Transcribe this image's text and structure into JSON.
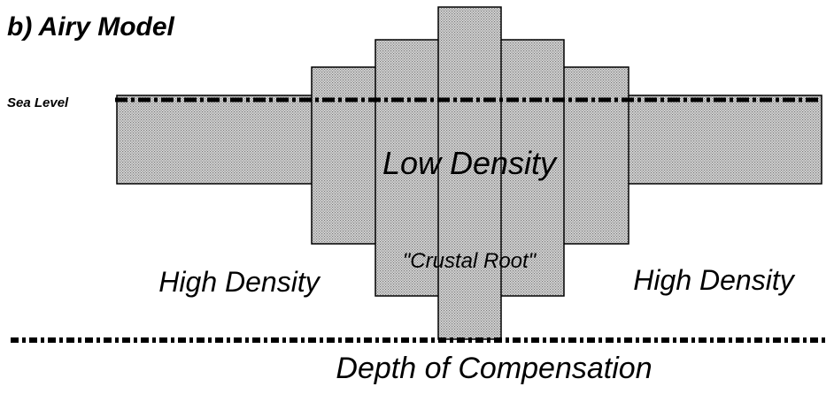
{
  "title": "b) Airy Model",
  "sea_level_label": "Sea Level",
  "labels": {
    "low_density": "Low Density",
    "crustal_root": "\"Crustal Root\"",
    "high_density_left": "High Density",
    "high_density_right": "High Density"
  },
  "depth_label": "Depth of Compensation"
}
